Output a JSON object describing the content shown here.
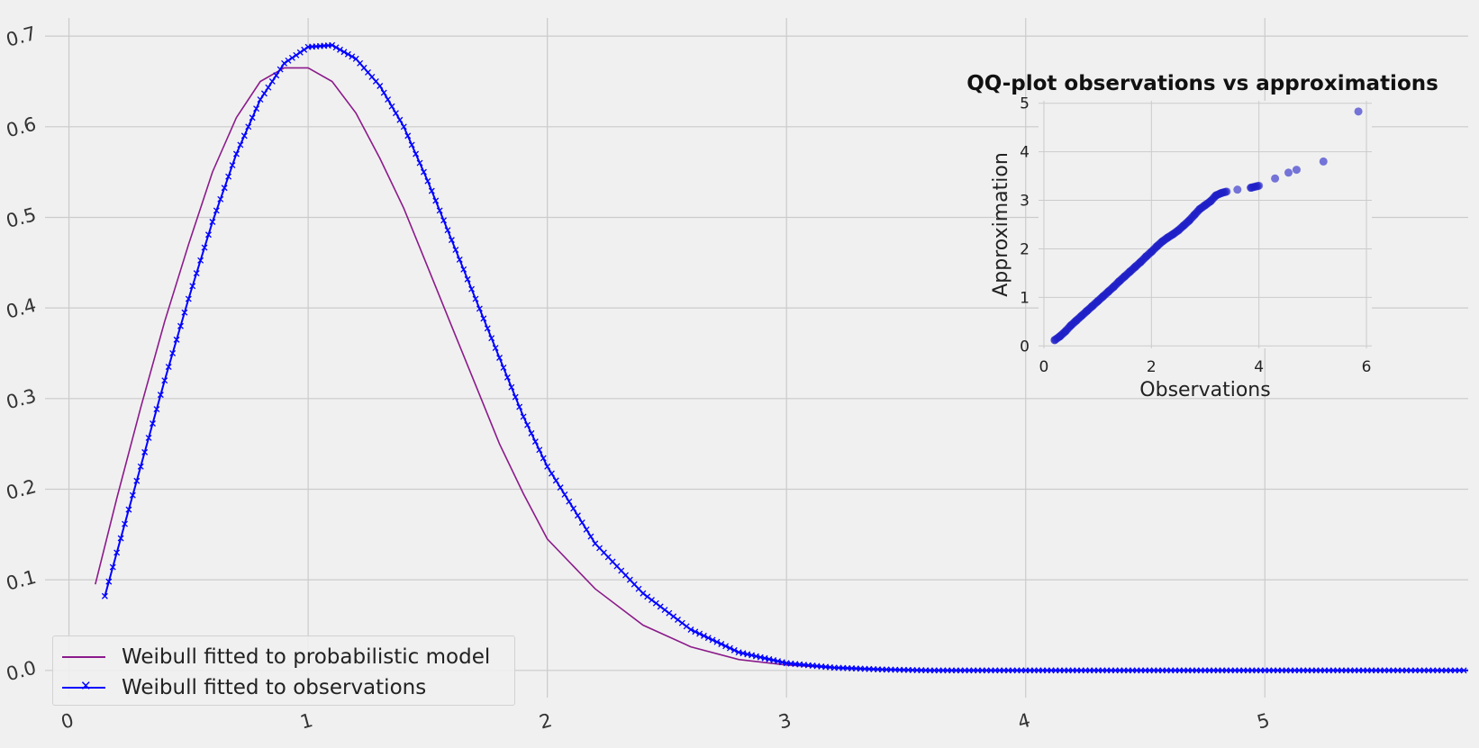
{
  "colors": {
    "background": "#f0f0f0",
    "grid": "#cbcbcb",
    "model_line": "#8b1a8b",
    "obs_line": "#0000ff",
    "qq_points": "#1f1fc8"
  },
  "chart_data": [
    {
      "type": "line",
      "title": "",
      "xlabel": "",
      "ylabel": "",
      "xlim": [
        -0.1,
        5.85
      ],
      "ylim": [
        -0.03,
        0.72
      ],
      "x_ticks": [
        0,
        1,
        2,
        3,
        4,
        5
      ],
      "x_tick_labels": [
        "0",
        "1",
        "2",
        "3",
        "4",
        "5"
      ],
      "y_ticks": [
        0.0,
        0.1,
        0.2,
        0.3,
        0.4,
        0.5,
        0.6,
        0.7
      ],
      "y_tick_labels": [
        "0.0",
        "0.1",
        "0.2",
        "0.3",
        "0.4",
        "0.5",
        "0.6",
        "0.7"
      ],
      "grid": true,
      "legend_position": "lower-left",
      "series": [
        {
          "name": "Weibull fitted to probabilistic model",
          "color": "#8b1a8b",
          "marker": "none",
          "x": [
            0.11,
            0.2,
            0.3,
            0.4,
            0.5,
            0.6,
            0.7,
            0.8,
            0.9,
            1.0,
            1.1,
            1.2,
            1.3,
            1.4,
            1.5,
            1.6,
            1.7,
            1.8,
            1.9,
            2.0,
            2.2,
            2.4,
            2.6,
            2.8,
            3.0,
            3.2,
            3.4,
            3.6,
            4.0,
            4.5,
            5.0,
            5.5,
            5.85
          ],
          "y": [
            0.095,
            0.19,
            0.29,
            0.385,
            0.47,
            0.55,
            0.61,
            0.65,
            0.665,
            0.665,
            0.65,
            0.615,
            0.565,
            0.51,
            0.445,
            0.38,
            0.315,
            0.25,
            0.195,
            0.145,
            0.09,
            0.05,
            0.026,
            0.012,
            0.006,
            0.003,
            0.001,
            0.0,
            0.0,
            0.0,
            0.0,
            0.0,
            0.0
          ]
        },
        {
          "name": "Weibull fitted to observations",
          "color": "#0000ff",
          "marker": "x",
          "x": [
            0.15,
            0.2,
            0.3,
            0.4,
            0.5,
            0.6,
            0.7,
            0.8,
            0.9,
            1.0,
            1.1,
            1.2,
            1.3,
            1.4,
            1.5,
            1.6,
            1.7,
            1.8,
            1.9,
            2.0,
            2.2,
            2.4,
            2.6,
            2.8,
            3.0,
            3.2,
            3.4,
            3.6,
            4.0,
            4.5,
            5.0,
            5.5,
            5.85
          ],
          "y": [
            0.082,
            0.13,
            0.225,
            0.32,
            0.41,
            0.495,
            0.57,
            0.63,
            0.67,
            0.688,
            0.69,
            0.675,
            0.645,
            0.6,
            0.54,
            0.475,
            0.41,
            0.345,
            0.28,
            0.225,
            0.14,
            0.085,
            0.045,
            0.02,
            0.008,
            0.003,
            0.001,
            0.0,
            0.0,
            0.0,
            0.0,
            0.0,
            0.0
          ]
        }
      ]
    },
    {
      "type": "scatter",
      "title": "QQ-plot observations vs approximations",
      "xlabel": "Observations",
      "ylabel": "Approximation",
      "xlim": [
        -0.1,
        6.1
      ],
      "ylim": [
        -0.05,
        5.05
      ],
      "x_ticks": [
        0,
        2,
        4,
        6
      ],
      "x_tick_labels": [
        "0",
        "2",
        "4",
        "6"
      ],
      "y_ticks": [
        0,
        1,
        2,
        3,
        4,
        5
      ],
      "y_tick_labels": [
        "0",
        "1",
        "2",
        "3",
        "4",
        "5"
      ],
      "grid": true,
      "series": [
        {
          "color": "#1f1fc8",
          "points": [
            [
              0.2,
              0.12
            ],
            [
              0.3,
              0.2
            ],
            [
              0.4,
              0.3
            ],
            [
              0.5,
              0.42
            ],
            [
              0.6,
              0.52
            ],
            [
              0.7,
              0.62
            ],
            [
              0.8,
              0.72
            ],
            [
              0.9,
              0.82
            ],
            [
              1.0,
              0.92
            ],
            [
              1.1,
              1.02
            ],
            [
              1.2,
              1.12
            ],
            [
              1.3,
              1.22
            ],
            [
              1.4,
              1.33
            ],
            [
              1.5,
              1.43
            ],
            [
              1.6,
              1.53
            ],
            [
              1.7,
              1.63
            ],
            [
              1.8,
              1.73
            ],
            [
              1.9,
              1.84
            ],
            [
              2.0,
              1.94
            ],
            [
              2.1,
              2.05
            ],
            [
              2.2,
              2.15
            ],
            [
              2.3,
              2.23
            ],
            [
              2.4,
              2.3
            ],
            [
              2.5,
              2.38
            ],
            [
              2.6,
              2.48
            ],
            [
              2.7,
              2.58
            ],
            [
              2.8,
              2.7
            ],
            [
              2.9,
              2.82
            ],
            [
              3.0,
              2.9
            ],
            [
              3.1,
              2.98
            ],
            [
              3.2,
              3.1
            ],
            [
              3.3,
              3.15
            ],
            [
              3.4,
              3.18
            ],
            [
              3.6,
              3.22
            ],
            [
              3.85,
              3.26
            ],
            [
              4.0,
              3.3
            ],
            [
              4.3,
              3.45
            ],
            [
              4.55,
              3.57
            ],
            [
              4.7,
              3.63
            ],
            [
              5.2,
              3.8
            ],
            [
              5.85,
              4.83
            ]
          ]
        }
      ]
    }
  ]
}
